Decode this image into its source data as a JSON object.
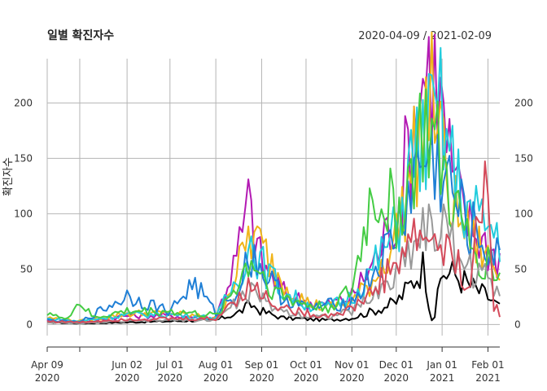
{
  "chart_data": {
    "type": "line",
    "title": "일별 확진자수",
    "date_range": "2020-04-09 / 2021-02-09",
    "ylabel": "확진자수",
    "xlabel": "",
    "x_start": "2020-04-09",
    "x_end": "2021-02-09",
    "xlim": [
      "2020-04-09",
      "2021-02-09"
    ],
    "ylim": [
      -10,
      240
    ],
    "y_ticks": [
      0,
      50,
      100,
      150,
      200
    ],
    "y_tick_labels": [
      "0",
      "50",
      "100",
      "150",
      "200"
    ],
    "x_ticks": [
      {
        "date": "2020-04-09",
        "label1": "Apr 09",
        "label2": "2020"
      },
      {
        "date": "2020-05-01",
        "label1": "",
        "label2": ""
      },
      {
        "date": "2020-06-02",
        "label1": "Jun 02",
        "label2": "2020"
      },
      {
        "date": "2020-07-01",
        "label1": "Jul 01",
        "label2": "2020"
      },
      {
        "date": "2020-08-01",
        "label1": "Aug 01",
        "label2": "2020"
      },
      {
        "date": "2020-09-01",
        "label1": "Sep 01",
        "label2": "2020"
      },
      {
        "date": "2020-10-01",
        "label1": "Oct 01",
        "label2": "2020"
      },
      {
        "date": "2020-11-01",
        "label1": "Nov 01",
        "label2": "2020"
      },
      {
        "date": "2020-12-01",
        "label1": "Dec 01",
        "label2": "2020"
      },
      {
        "date": "2021-01-01",
        "label1": "Jan 01",
        "label2": "2021"
      },
      {
        "date": "2021-02-01",
        "label1": "Feb 01",
        "label2": "2021"
      }
    ],
    "grid": true,
    "legend": "none",
    "series": [
      {
        "color": "#000000",
        "values": [
          [
            "2020-04-09",
            2
          ],
          [
            "2020-05-01",
            1
          ],
          [
            "2020-06-02",
            2
          ],
          [
            "2020-07-01",
            3
          ],
          [
            "2020-08-01",
            4
          ],
          [
            "2020-08-15",
            10
          ],
          [
            "2020-08-25",
            18
          ],
          [
            "2020-09-01",
            12
          ],
          [
            "2020-09-15",
            6
          ],
          [
            "2020-10-01",
            5
          ],
          [
            "2020-10-15",
            4
          ],
          [
            "2020-11-01",
            6
          ],
          [
            "2020-11-15",
            12
          ],
          [
            "2020-12-01",
            20
          ],
          [
            "2020-12-10",
            35
          ],
          [
            "2020-12-20",
            55
          ],
          [
            "2020-12-24",
            10
          ],
          [
            "2020-12-26",
            0
          ],
          [
            "2021-01-01",
            48
          ],
          [
            "2021-01-10",
            45
          ],
          [
            "2021-01-20",
            35
          ],
          [
            "2021-02-01",
            25
          ],
          [
            "2021-02-09",
            15
          ]
        ]
      },
      {
        "color": "#b31ab3",
        "values": [
          [
            "2020-04-09",
            4
          ],
          [
            "2020-05-01",
            2
          ],
          [
            "2020-06-02",
            8
          ],
          [
            "2020-07-01",
            8
          ],
          [
            "2020-08-01",
            6
          ],
          [
            "2020-08-15",
            60
          ],
          [
            "2020-08-23",
            108
          ],
          [
            "2020-09-01",
            55
          ],
          [
            "2020-09-15",
            30
          ],
          [
            "2020-10-01",
            20
          ],
          [
            "2020-10-15",
            18
          ],
          [
            "2020-11-01",
            25
          ],
          [
            "2020-11-15",
            55
          ],
          [
            "2020-12-01",
            100
          ],
          [
            "2020-12-10",
            165
          ],
          [
            "2020-12-20",
            230
          ],
          [
            "2020-12-25",
            238
          ],
          [
            "2021-01-01",
            190
          ],
          [
            "2021-01-10",
            120
          ],
          [
            "2021-01-20",
            90
          ],
          [
            "2021-02-01",
            70
          ],
          [
            "2021-02-09",
            60
          ]
        ]
      },
      {
        "color": "#f0b419",
        "values": [
          [
            "2020-04-09",
            6
          ],
          [
            "2020-05-01",
            3
          ],
          [
            "2020-06-02",
            10
          ],
          [
            "2020-07-01",
            10
          ],
          [
            "2020-08-01",
            6
          ],
          [
            "2020-08-15",
            45
          ],
          [
            "2020-08-23",
            80
          ],
          [
            "2020-09-01",
            70
          ],
          [
            "2020-09-15",
            40
          ],
          [
            "2020-10-01",
            20
          ],
          [
            "2020-10-15",
            15
          ],
          [
            "2020-11-01",
            20
          ],
          [
            "2020-11-15",
            40
          ],
          [
            "2020-12-01",
            80
          ],
          [
            "2020-12-10",
            130
          ],
          [
            "2020-12-20",
            190
          ],
          [
            "2020-12-28",
            205
          ],
          [
            "2021-01-01",
            150
          ],
          [
            "2021-01-10",
            100
          ],
          [
            "2021-01-20",
            80
          ],
          [
            "2021-02-01",
            60
          ],
          [
            "2021-02-09",
            45
          ]
        ]
      },
      {
        "color": "#22ccdd",
        "values": [
          [
            "2020-04-09",
            5
          ],
          [
            "2020-05-01",
            3
          ],
          [
            "2020-06-02",
            9
          ],
          [
            "2020-07-01",
            9
          ],
          [
            "2020-08-01",
            6
          ],
          [
            "2020-08-15",
            40
          ],
          [
            "2020-08-25",
            75
          ],
          [
            "2020-09-01",
            55
          ],
          [
            "2020-09-15",
            30
          ],
          [
            "2020-10-01",
            18
          ],
          [
            "2020-10-15",
            15
          ],
          [
            "2020-11-01",
            25
          ],
          [
            "2020-11-15",
            50
          ],
          [
            "2020-12-01",
            85
          ],
          [
            "2020-12-10",
            140
          ],
          [
            "2020-12-20",
            170
          ],
          [
            "2021-01-01",
            190
          ],
          [
            "2021-01-10",
            130
          ],
          [
            "2021-01-20",
            100
          ],
          [
            "2021-02-01",
            90
          ],
          [
            "2021-02-09",
            80
          ]
        ]
      },
      {
        "color": "#1f7fd6",
        "values": [
          [
            "2020-04-09",
            4
          ],
          [
            "2020-05-01",
            2
          ],
          [
            "2020-06-02",
            26
          ],
          [
            "2020-07-01",
            12
          ],
          [
            "2020-07-17",
            38
          ],
          [
            "2020-08-01",
            10
          ],
          [
            "2020-08-15",
            30
          ],
          [
            "2020-08-25",
            65
          ],
          [
            "2020-09-01",
            50
          ],
          [
            "2020-09-15",
            25
          ],
          [
            "2020-10-01",
            15
          ],
          [
            "2020-11-01",
            20
          ],
          [
            "2020-11-15",
            45
          ],
          [
            "2020-12-01",
            80
          ],
          [
            "2020-12-10",
            120
          ],
          [
            "2020-12-20",
            150
          ],
          [
            "2021-01-01",
            140
          ],
          [
            "2021-01-10",
            110
          ],
          [
            "2021-01-20",
            85
          ],
          [
            "2021-02-01",
            70
          ],
          [
            "2021-02-09",
            55
          ]
        ]
      },
      {
        "color": "#44cc44",
        "values": [
          [
            "2020-04-09",
            12
          ],
          [
            "2020-04-20",
            4
          ],
          [
            "2020-05-01",
            20
          ],
          [
            "2020-05-10",
            6
          ],
          [
            "2020-06-02",
            12
          ],
          [
            "2020-07-01",
            12
          ],
          [
            "2020-08-01",
            8
          ],
          [
            "2020-08-15",
            35
          ],
          [
            "2020-08-25",
            60
          ],
          [
            "2020-09-01",
            45
          ],
          [
            "2020-09-15",
            25
          ],
          [
            "2020-10-01",
            18
          ],
          [
            "2020-10-15",
            15
          ],
          [
            "2020-11-01",
            30
          ],
          [
            "2020-11-15",
            120
          ],
          [
            "2020-12-01",
            100
          ],
          [
            "2020-12-10",
            130
          ],
          [
            "2020-12-20",
            180
          ],
          [
            "2021-01-01",
            140
          ],
          [
            "2021-01-10",
            100
          ],
          [
            "2021-01-20",
            70
          ],
          [
            "2021-02-01",
            55
          ],
          [
            "2021-02-09",
            45
          ]
        ]
      },
      {
        "color": "#999999",
        "values": [
          [
            "2020-04-09",
            2
          ],
          [
            "2020-05-01",
            1
          ],
          [
            "2020-06-02",
            3
          ],
          [
            "2020-07-01",
            4
          ],
          [
            "2020-08-01",
            4
          ],
          [
            "2020-08-15",
            20
          ],
          [
            "2020-08-25",
            30
          ],
          [
            "2020-09-01",
            22
          ],
          [
            "2020-09-15",
            12
          ],
          [
            "2020-10-01",
            8
          ],
          [
            "2020-10-15",
            7
          ],
          [
            "2020-11-01",
            12
          ],
          [
            "2020-11-15",
            25
          ],
          [
            "2020-12-01",
            45
          ],
          [
            "2020-12-10",
            70
          ],
          [
            "2020-12-20",
            90
          ],
          [
            "2021-01-01",
            85
          ],
          [
            "2021-01-10",
            70
          ],
          [
            "2021-01-20",
            50
          ],
          [
            "2021-02-01",
            40
          ],
          [
            "2021-02-09",
            30
          ]
        ]
      },
      {
        "color": "#d44a5a",
        "values": [
          [
            "2020-04-09",
            3
          ],
          [
            "2020-05-01",
            2
          ],
          [
            "2020-06-02",
            5
          ],
          [
            "2020-07-01",
            5
          ],
          [
            "2020-08-01",
            5
          ],
          [
            "2020-08-15",
            25
          ],
          [
            "2020-08-25",
            35
          ],
          [
            "2020-09-01",
            28
          ],
          [
            "2020-09-15",
            15
          ],
          [
            "2020-10-01",
            10
          ],
          [
            "2020-10-15",
            8
          ],
          [
            "2020-11-01",
            14
          ],
          [
            "2020-11-15",
            30
          ],
          [
            "2020-12-01",
            55
          ],
          [
            "2020-12-10",
            75
          ],
          [
            "2020-12-20",
            80
          ],
          [
            "2021-01-01",
            70
          ],
          [
            "2021-01-10",
            55
          ],
          [
            "2021-01-20",
            40
          ],
          [
            "2021-02-01",
            138
          ],
          [
            "2021-02-04",
            20
          ],
          [
            "2021-02-09",
            10
          ]
        ]
      }
    ]
  }
}
